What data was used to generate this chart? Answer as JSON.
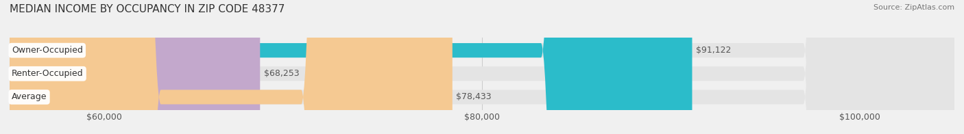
{
  "title": "MEDIAN INCOME BY OCCUPANCY IN ZIP CODE 48377",
  "source": "Source: ZipAtlas.com",
  "categories": [
    "Owner-Occupied",
    "Renter-Occupied",
    "Average"
  ],
  "values": [
    91122,
    68253,
    78433
  ],
  "labels": [
    "$91,122",
    "$68,253",
    "$78,433"
  ],
  "bar_colors": [
    "#2bbcca",
    "#c3a8cc",
    "#f5c992"
  ],
  "xlim": [
    55000,
    105000
  ],
  "xticks": [
    60000,
    80000,
    100000
  ],
  "xticklabels": [
    "$60,000",
    "$80,000",
    "$100,000"
  ],
  "background_color": "#f0f0f0",
  "bar_bg_color": "#e4e4e4",
  "title_fontsize": 11,
  "source_fontsize": 8,
  "label_fontsize": 9,
  "category_fontsize": 9,
  "tick_fontsize": 9,
  "bar_height": 0.62
}
